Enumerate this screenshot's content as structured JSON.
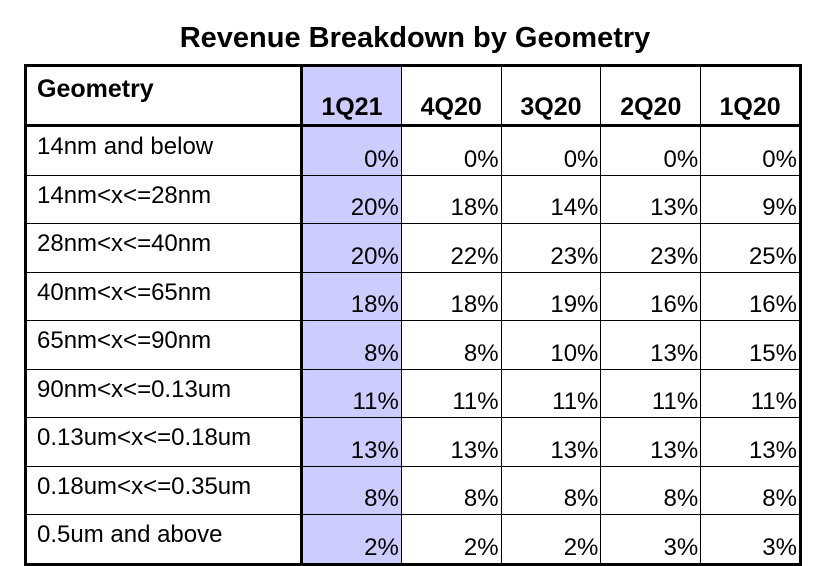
{
  "chart_data": {
    "type": "table",
    "title": "Revenue Breakdown by Geometry",
    "row_header": "Geometry",
    "columns": [
      "1Q21",
      "4Q20",
      "3Q20",
      "2Q20",
      "1Q20"
    ],
    "highlight_column": "1Q21",
    "highlight_color": "#ccccff",
    "rows": [
      {
        "label": "14nm and below",
        "values": [
          "0%",
          "0%",
          "0%",
          "0%",
          "0%"
        ]
      },
      {
        "label": "14nm<x<=28nm",
        "values": [
          "20%",
          "18%",
          "14%",
          "13%",
          "9%"
        ]
      },
      {
        "label": "28nm<x<=40nm",
        "values": [
          "20%",
          "22%",
          "23%",
          "23%",
          "25%"
        ]
      },
      {
        "label": "40nm<x<=65nm",
        "values": [
          "18%",
          "18%",
          "19%",
          "16%",
          "16%"
        ]
      },
      {
        "label": "65nm<x<=90nm",
        "values": [
          "8%",
          "8%",
          "10%",
          "13%",
          "15%"
        ]
      },
      {
        "label": "90nm<x<=0.13um",
        "values": [
          "11%",
          "11%",
          "11%",
          "11%",
          "11%"
        ]
      },
      {
        "label": "0.13um<x<=0.18um",
        "values": [
          "13%",
          "13%",
          "13%",
          "13%",
          "13%"
        ]
      },
      {
        "label": "0.18um<x<=0.35um",
        "values": [
          "8%",
          "8%",
          "8%",
          "8%",
          "8%"
        ]
      },
      {
        "label": "0.5um and above",
        "values": [
          "2%",
          "2%",
          "2%",
          "3%",
          "3%"
        ]
      }
    ]
  }
}
